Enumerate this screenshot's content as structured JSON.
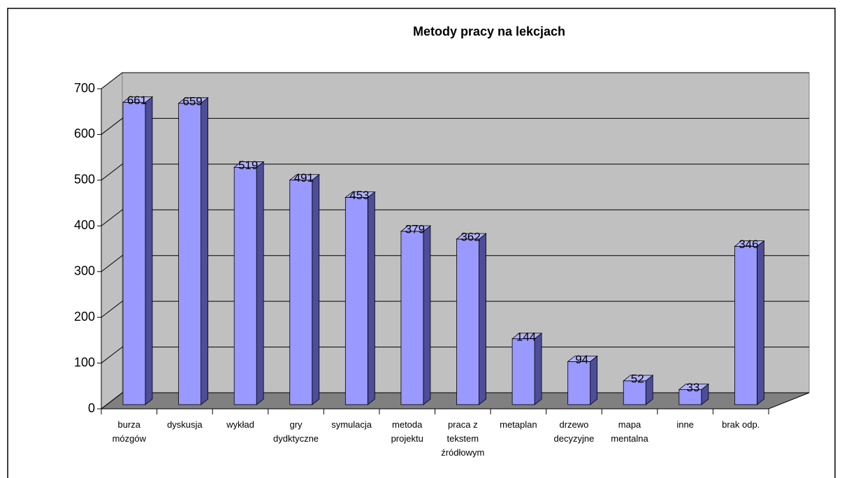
{
  "chart_data": {
    "type": "bar3d",
    "title": "Metody pracy na  lekcjach",
    "categories": [
      "burza mózgów",
      "dyskusja",
      "wykład",
      "gry dydktyczne",
      "symulacja",
      "metoda projektu",
      "praca z tekstem źródłowym",
      "metaplan",
      "drzewo decyzyjne",
      "mapa mentalna",
      "inne",
      "brak odp."
    ],
    "values": [
      661,
      659,
      519,
      491,
      453,
      379,
      362,
      144,
      94,
      52,
      33,
      346
    ],
    "color": "#9999ff",
    "ylim": [
      0,
      700
    ],
    "yticks": [
      0,
      100,
      200,
      300,
      400,
      500,
      600,
      700
    ],
    "grid": true
  }
}
